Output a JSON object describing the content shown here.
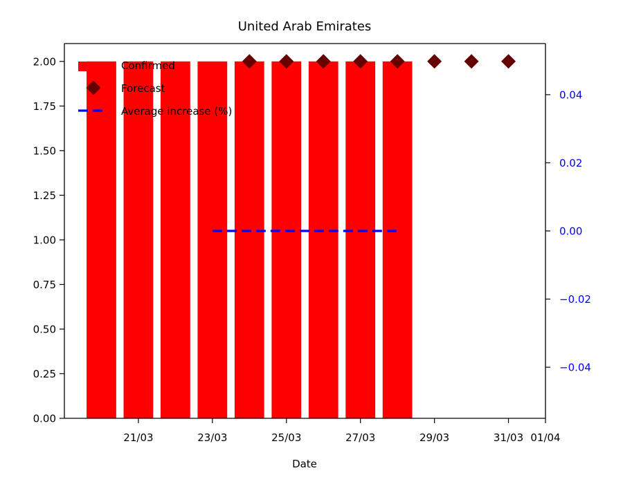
{
  "chart_data": {
    "type": "bar",
    "title": "United Arab Emirates",
    "xlabel": "Date",
    "ylabel": "",
    "ylabel_right": "",
    "x_range": [
      "2020-03-19",
      "2020-04-01"
    ],
    "ylim": [
      0,
      2.1
    ],
    "ylim_right": [
      -0.055,
      0.055
    ],
    "x_ticks": [
      {
        "date": "2020-03-21",
        "label": "21/03"
      },
      {
        "date": "2020-03-23",
        "label": "23/03"
      },
      {
        "date": "2020-03-25",
        "label": "25/03"
      },
      {
        "date": "2020-03-27",
        "label": "27/03"
      },
      {
        "date": "2020-03-29",
        "label": "29/03"
      },
      {
        "date": "2020-03-31",
        "label": "31/03"
      },
      {
        "date": "2020-04-01",
        "label": "01/04"
      }
    ],
    "y_ticks": [
      "0.00",
      "0.25",
      "0.50",
      "0.75",
      "1.00",
      "1.25",
      "1.50",
      "1.75",
      "2.00"
    ],
    "y_ticks_right": [
      "−0.04",
      "−0.02",
      "0.00",
      "0.02",
      "0.04"
    ],
    "series": [
      {
        "name": "Confirmed",
        "type": "bar",
        "color": "#ff0000",
        "x": [
          "2020-03-20",
          "2020-03-21",
          "2020-03-22",
          "2020-03-23",
          "2020-03-24",
          "2020-03-25",
          "2020-03-26",
          "2020-03-27",
          "2020-03-28"
        ],
        "values": [
          2,
          2,
          2,
          2,
          2,
          2,
          2,
          2,
          2
        ]
      },
      {
        "name": "Forecast",
        "type": "scatter",
        "marker": "diamond",
        "color": "#660000",
        "x": [
          "2020-03-24",
          "2020-03-25",
          "2020-03-26",
          "2020-03-27",
          "2020-03-28",
          "2020-03-29",
          "2020-03-30",
          "2020-03-31"
        ],
        "values": [
          2,
          2,
          2,
          2,
          2,
          2,
          2,
          2
        ]
      },
      {
        "name": "Average increase (%)",
        "type": "line",
        "style": "dashed",
        "axis": "right",
        "color": "#0000ff",
        "x": [
          "2020-03-23",
          "2020-03-28"
        ],
        "values": [
          0,
          0
        ]
      }
    ],
    "legend_position": "top-left",
    "grid": false
  }
}
